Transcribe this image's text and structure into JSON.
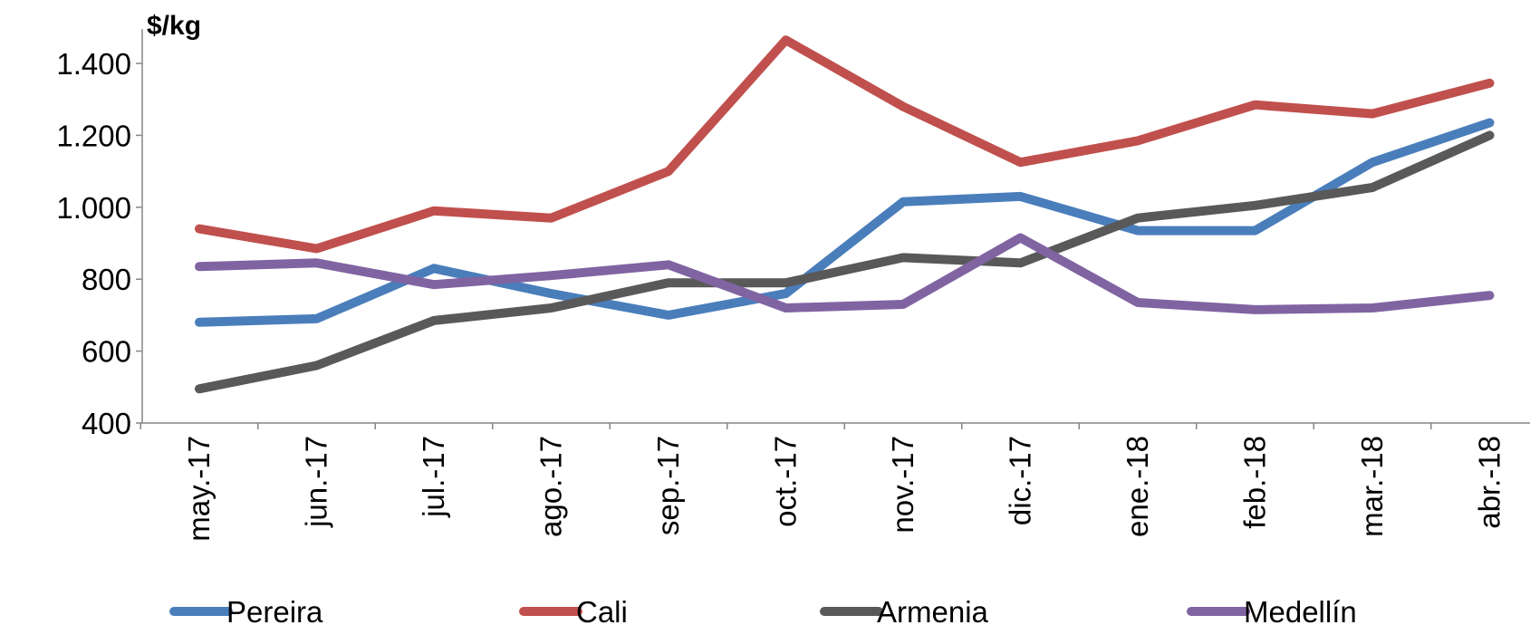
{
  "chart_data": {
    "type": "line",
    "ylabel": "$/kg",
    "ylim": [
      400,
      1400
    ],
    "y_ticks": [
      "1.400",
      "1.200",
      "1.000",
      "800",
      "600",
      "400"
    ],
    "y_tick_values": [
      1400,
      1200,
      1000,
      800,
      600,
      400
    ],
    "categories": [
      "may.-17",
      "jun.-17",
      "jul.-17",
      "ago.-17",
      "sep.-17",
      "oct.-17",
      "nov.-17",
      "dic.-17",
      "ene.-18",
      "feb.-18",
      "mar.-18",
      "abr.-18"
    ],
    "legend_position": "bottom",
    "grid": false,
    "series": [
      {
        "name": "Pereira",
        "color": "#4a7ebb",
        "values": [
          680,
          690,
          830,
          760,
          700,
          760,
          1015,
          1030,
          935,
          935,
          1125,
          1235
        ]
      },
      {
        "name": "Cali",
        "color": "#c0504d",
        "values": [
          940,
          885,
          990,
          970,
          1100,
          1465,
          1280,
          1125,
          1185,
          1285,
          1260,
          1345
        ]
      },
      {
        "name": "Armenia",
        "color": "#595959",
        "values": [
          495,
          560,
          685,
          720,
          790,
          790,
          860,
          845,
          970,
          1005,
          1055,
          1200
        ]
      },
      {
        "name": "Medellín",
        "color": "#8064a2",
        "values": [
          835,
          845,
          785,
          810,
          840,
          720,
          730,
          915,
          735,
          715,
          720,
          755
        ]
      }
    ]
  }
}
